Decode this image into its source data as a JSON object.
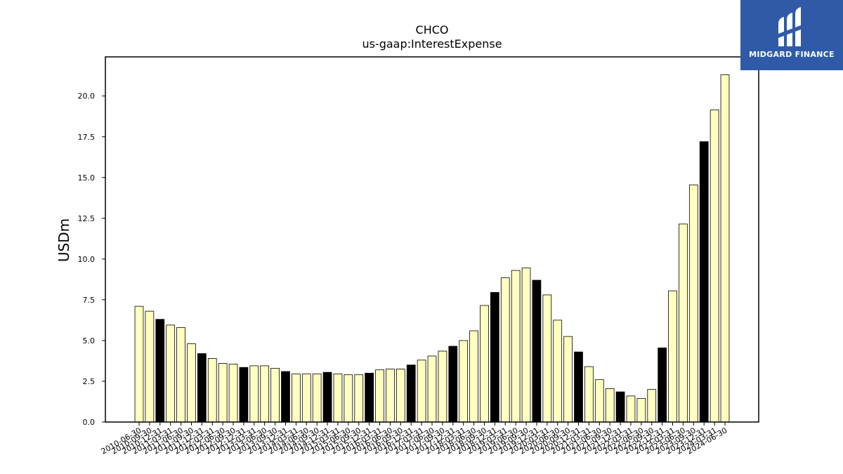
{
  "brand": {
    "name": "MIDGARD FINANCE",
    "bg_color": "#2f5aa8"
  },
  "chart_data": {
    "type": "bar",
    "title": "CHCO",
    "subtitle": "us-gaap:InterestExpense",
    "xlabel": "",
    "ylabel": "USDm",
    "ylim": [
      0,
      22.4
    ],
    "yticks": [
      0.0,
      2.5,
      5.0,
      7.5,
      10.0,
      12.5,
      15.0,
      17.5,
      20.0
    ],
    "grid": false,
    "legend": "none",
    "colors": {
      "default": "#ffffc0",
      "highlight": "#000000",
      "edge": "#000000"
    },
    "categories": [
      "2010-06-30",
      "2010-09-30",
      "2010-12-31",
      "2011-03-31",
      "2011-06-30",
      "2011-09-30",
      "2011-12-31",
      "2012-03-31",
      "2012-06-30",
      "2012-09-30",
      "2012-12-31",
      "2013-03-31",
      "2013-06-30",
      "2013-09-30",
      "2013-12-31",
      "2014-03-31",
      "2014-06-30",
      "2014-09-30",
      "2014-12-31",
      "2015-03-31",
      "2015-06-30",
      "2015-09-30",
      "2015-12-31",
      "2016-03-31",
      "2016-06-30",
      "2016-09-30",
      "2016-12-31",
      "2017-03-31",
      "2017-06-30",
      "2017-09-30",
      "2017-12-31",
      "2018-03-31",
      "2018-06-30",
      "2018-09-30",
      "2018-12-31",
      "2019-03-31",
      "2019-06-30",
      "2019-09-30",
      "2019-12-31",
      "2020-03-31",
      "2020-06-30",
      "2020-09-30",
      "2020-12-31",
      "2021-03-31",
      "2021-06-30",
      "2021-09-30",
      "2021-12-31",
      "2022-03-31",
      "2022-06-30",
      "2022-09-30",
      "2022-12-31",
      "2023-03-31",
      "2023-06-30",
      "2023-09-30",
      "2023-12-31",
      "2024-03-31",
      "2024-06-30"
    ],
    "values": [
      7.1,
      6.8,
      6.3,
      5.95,
      5.8,
      4.8,
      4.2,
      3.9,
      3.6,
      3.55,
      3.35,
      3.45,
      3.45,
      3.3,
      3.1,
      2.95,
      2.95,
      2.95,
      3.05,
      2.95,
      2.9,
      2.9,
      3.0,
      3.2,
      3.25,
      3.25,
      3.5,
      3.8,
      4.05,
      4.35,
      4.65,
      5.0,
      5.6,
      7.15,
      7.95,
      8.85,
      9.3,
      9.45,
      8.7,
      7.8,
      6.25,
      5.25,
      4.3,
      3.4,
      2.6,
      2.05,
      1.85,
      1.6,
      1.45,
      2.0,
      4.55,
      8.05,
      12.15,
      14.55,
      17.2,
      19.15,
      21.3
    ],
    "highlighted": [
      "2010-12-31",
      "2011-12-31",
      "2012-12-31",
      "2013-12-31",
      "2014-12-31",
      "2015-12-31",
      "2016-12-31",
      "2017-12-31",
      "2018-12-31",
      "2019-12-31",
      "2020-12-31",
      "2021-12-31",
      "2022-12-31",
      "2023-12-31"
    ]
  }
}
